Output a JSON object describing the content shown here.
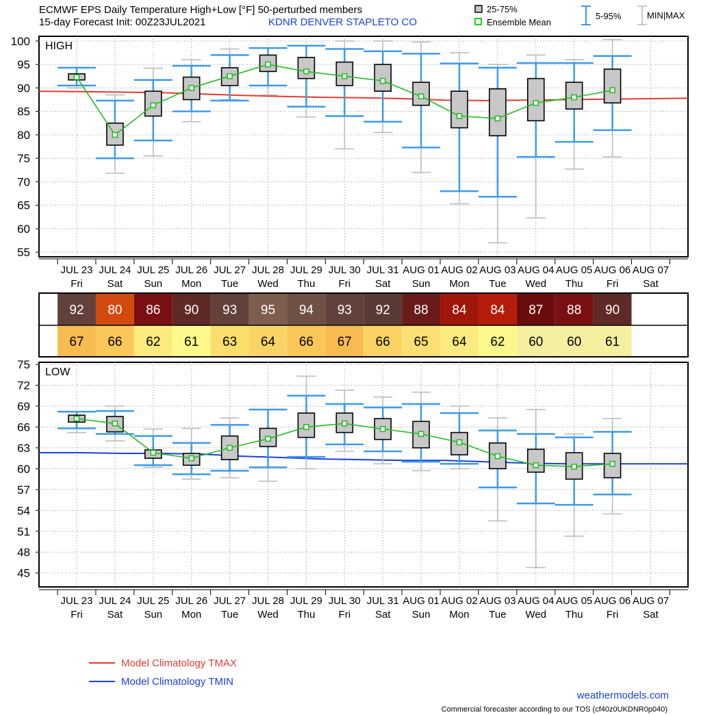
{
  "header": {
    "title_line1": "ECMWF EPS Daily Temperature High+Low [°F]  50-perturbed members",
    "title_line2": "15-day Forecast Init: 00Z23JUL2021",
    "station": "KDNR  DENVER STAPLETO CO"
  },
  "legend": {
    "box_label": "25-75%",
    "mean_label": "Ensemble Mean",
    "whisker_label": "5-95%",
    "minmax_label": "MIN|MAX"
  },
  "climatology_legend": {
    "tmax_label": "Model Climatology TMAX",
    "tmin_label": "Model Climatology TMIN"
  },
  "footer": {
    "site": "weathermodels.com",
    "note": "Commercial forecaster according to our TOS (cf40z0UKDNR0p040)"
  },
  "colors": {
    "box_fill": "#c8c8c8",
    "whisker": "#3d9ae8",
    "minmax": "#b8b8b8",
    "mean": "#22bb22",
    "tmax_clim": "#e03c30",
    "tmin_clim": "#1a3fe0"
  },
  "days": {
    "dates": [
      "JUL 23",
      "JUL 24",
      "JUL 25",
      "JUL 26",
      "JUL 27",
      "JUL 28",
      "JUL 29",
      "JUL 30",
      "JUL 31",
      "AUG 01",
      "AUG 02",
      "AUG 03",
      "AUG 04",
      "AUG 05",
      "AUG 06",
      "AUG 07"
    ],
    "weekdays": [
      "Fri",
      "Sat",
      "Sun",
      "Mon",
      "Tue",
      "Wed",
      "Thu",
      "Fri",
      "Sat",
      "Sun",
      "Mon",
      "Tue",
      "Wed",
      "Thu",
      "Fri",
      "Sat"
    ]
  },
  "table": {
    "high_values": [
      "92",
      "80",
      "86",
      "90",
      "93",
      "95",
      "94",
      "93",
      "92",
      "88",
      "84",
      "84",
      "87",
      "88",
      "90"
    ],
    "high_colors": [
      "#62413a",
      "#d24a10",
      "#7a1012",
      "#5e2a26",
      "#62413a",
      "#7e5c4e",
      "#6e5044",
      "#62413a",
      "#5a3a34",
      "#6a1a1a",
      "#a01608",
      "#b51c0a",
      "#6a0c0e",
      "#7a1012",
      "#5e2a26"
    ],
    "low_values": [
      "67",
      "66",
      "62",
      "61",
      "63",
      "64",
      "66",
      "67",
      "66",
      "65",
      "64",
      "62",
      "60",
      "60",
      "61"
    ],
    "low_colors": [
      "#f8bb52",
      "#fbc758",
      "#fbea7e",
      "#fdf98a",
      "#fbde6c",
      "#fad367",
      "#fbc758",
      "#f8bb52",
      "#fbd365",
      "#fbdf72",
      "#fbea7e",
      "#fcf98c",
      "#f4f0a0",
      "#f4f0a0",
      "#f4f0a0"
    ]
  },
  "chart_data": [
    {
      "type": "box",
      "panel_label": "HIGH",
      "ylim": [
        54,
        101
      ],
      "yticks": [
        55,
        60,
        65,
        70,
        75,
        80,
        85,
        90,
        95,
        100
      ],
      "categories": [
        "JUL 23",
        "JUL 24",
        "JUL 25",
        "JUL 26",
        "JUL 27",
        "JUL 28",
        "JUL 29",
        "JUL 30",
        "JUL 31",
        "AUG 01",
        "AUG 02",
        "AUG 03",
        "AUG 04",
        "AUG 05",
        "AUG 06"
      ],
      "min": [
        90.0,
        71.8,
        75.5,
        82.8,
        87.5,
        88.5,
        83.8,
        77.0,
        80.5,
        72.0,
        65.3,
        57.0,
        62.3,
        72.7,
        75.3
      ],
      "p5": [
        90.5,
        75.0,
        78.8,
        85.0,
        87.3,
        90.5,
        86.0,
        84.0,
        82.8,
        77.3,
        68.0,
        66.8,
        75.3,
        78.5,
        81.0
      ],
      "p25": [
        91.7,
        77.8,
        84.0,
        87.5,
        90.5,
        93.5,
        92.0,
        90.5,
        89.3,
        86.3,
        81.5,
        79.8,
        83.0,
        85.5,
        86.8
      ],
      "mean": [
        92.3,
        80.0,
        86.3,
        90.0,
        92.5,
        95.0,
        93.5,
        92.5,
        91.5,
        88.2,
        84.0,
        83.5,
        86.8,
        88.0,
        89.5
      ],
      "p75": [
        93.0,
        82.5,
        89.3,
        92.3,
        94.3,
        97.0,
        96.5,
        95.5,
        95.0,
        91.2,
        89.3,
        89.8,
        92.0,
        91.2,
        94.0
      ],
      "p95": [
        94.3,
        87.3,
        91.7,
        94.7,
        97.0,
        98.5,
        99.0,
        98.3,
        97.8,
        97.3,
        95.2,
        94.3,
        95.3,
        95.3,
        96.8
      ],
      "max": [
        94.3,
        88.5,
        94.2,
        96.0,
        98.3,
        98.5,
        99.0,
        100.0,
        100.0,
        99.8,
        97.5,
        95.0,
        97.0,
        96.0,
        100.3
      ],
      "climatology_tmax": [
        89.3,
        89.2,
        89.1,
        89.0,
        88.7,
        88.4,
        88.2,
        88.0,
        87.9,
        87.7,
        87.4,
        87.3,
        87.4,
        87.5,
        87.6,
        87.7,
        87.8
      ]
    },
    {
      "type": "box",
      "panel_label": "LOW",
      "ylim": [
        43,
        75.3
      ],
      "yticks": [
        45,
        48,
        51,
        54,
        57,
        60,
        63,
        66,
        69,
        72,
        75
      ],
      "categories": [
        "JUL 23",
        "JUL 24",
        "JUL 25",
        "JUL 26",
        "JUL 27",
        "JUL 28",
        "JUL 29",
        "JUL 30",
        "JUL 31",
        "AUG 01",
        "AUG 02",
        "AUG 03",
        "AUG 04",
        "AUG 05",
        "AUG 06"
      ],
      "min": [
        65.2,
        64.0,
        60.2,
        58.5,
        58.7,
        58.2,
        60.0,
        62.5,
        60.7,
        59.7,
        60.0,
        52.5,
        45.8,
        50.3,
        53.5
      ],
      "p5": [
        65.8,
        65.0,
        60.5,
        59.2,
        59.7,
        60.2,
        61.7,
        63.5,
        62.5,
        61.0,
        60.7,
        57.3,
        55.0,
        54.8,
        56.3
      ],
      "p25": [
        66.7,
        65.3,
        61.5,
        60.5,
        61.3,
        63.2,
        64.5,
        65.2,
        64.2,
        63.0,
        62.0,
        60.0,
        59.5,
        58.5,
        58.7
      ],
      "mean": [
        67.2,
        66.5,
        62.3,
        61.5,
        63.0,
        64.3,
        66.0,
        66.5,
        65.7,
        65.0,
        63.8,
        61.8,
        60.5,
        60.3,
        60.7
      ],
      "p75": [
        67.7,
        67.5,
        62.7,
        62.2,
        64.7,
        65.8,
        68.0,
        68.0,
        67.2,
        66.8,
        65.2,
        63.7,
        62.8,
        62.3,
        62.2
      ],
      "p95": [
        68.2,
        68.3,
        64.7,
        63.7,
        66.3,
        68.5,
        70.5,
        69.3,
        68.8,
        69.3,
        68.0,
        65.5,
        65.0,
        64.5,
        65.3
      ],
      "max": [
        68.2,
        69.0,
        65.7,
        65.8,
        67.3,
        68.5,
        73.3,
        71.3,
        70.3,
        71.0,
        69.0,
        67.3,
        68.5,
        65.0,
        67.2
      ],
      "climatology_tmin": [
        62.3,
        62.3,
        62.2,
        62.2,
        62.1,
        61.8,
        61.6,
        61.4,
        61.3,
        61.2,
        61.2,
        61.0,
        60.8,
        60.7,
        60.7,
        60.7,
        60.7
      ]
    }
  ]
}
